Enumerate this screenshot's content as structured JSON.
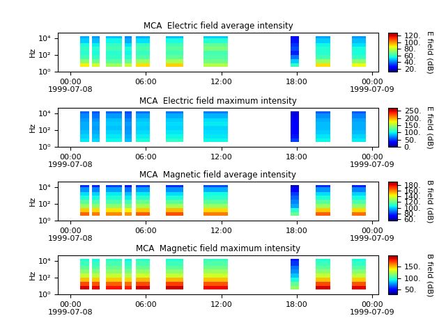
{
  "chart_data": [
    {
      "type": "heatmap",
      "title": "MCA  Electric field average intensity",
      "y_label": "Hz",
      "colorbar_label": "E field (dB)",
      "log": "y",
      "xlim": [
        -1,
        24.5
      ],
      "xticks": [
        {
          "value": 0,
          "label": "00:00\n1999-07-08"
        },
        {
          "value": 6,
          "label": "06:00"
        },
        {
          "value": 12,
          "label": "12:00"
        },
        {
          "value": 18,
          "label": "18:00"
        },
        {
          "value": 24,
          "label": "00:00\n1999-07-09"
        }
      ],
      "ylim": [
        1,
        50000
      ],
      "yticks": [
        {
          "value": 1,
          "label": "10⁰"
        },
        {
          "value": 100,
          "label": "10²"
        },
        {
          "value": 10000,
          "label": "10⁴"
        }
      ],
      "freq_edges": [
        4,
        10,
        30,
        100,
        300,
        1000,
        3000,
        10000,
        20000
      ],
      "color_range": [
        12,
        128
      ],
      "color_ticks": [
        {
          "value": 20,
          "label": "20."
        },
        {
          "value": 40,
          "label": "40."
        },
        {
          "value": 60,
          "label": "60."
        },
        {
          "value": 80,
          "label": "80."
        },
        {
          "value": 100,
          "label": "100."
        },
        {
          "value": 120,
          "label": "120."
        }
      ],
      "segments": [
        {
          "start": 0.8,
          "end": 1.5,
          "values": [
            88,
            72,
            62,
            58,
            60,
            56,
            50,
            46
          ]
        },
        {
          "start": 1.7,
          "end": 2.3,
          "values": [
            82,
            68,
            60,
            56,
            58,
            54,
            48,
            44
          ]
        },
        {
          "start": 2.8,
          "end": 4.1,
          "values": [
            75,
            65,
            60,
            58,
            62,
            60,
            55,
            48
          ]
        },
        {
          "start": 4.3,
          "end": 4.9,
          "values": [
            80,
            66,
            58,
            55,
            57,
            52,
            46,
            42
          ]
        },
        {
          "start": 5.2,
          "end": 6.3,
          "values": [
            90,
            74,
            64,
            60,
            63,
            60,
            52,
            46
          ]
        },
        {
          "start": 7.6,
          "end": 9.0,
          "values": [
            92,
            76,
            66,
            62,
            65,
            62,
            56,
            48
          ]
        },
        {
          "start": 10.6,
          "end": 12.5,
          "values": [
            78,
            68,
            64,
            62,
            70,
            66,
            58,
            50
          ]
        },
        {
          "start": 17.5,
          "end": 18.2,
          "values": [
            60,
            50,
            40,
            30,
            35,
            32,
            28,
            25
          ]
        },
        {
          "start": 19.5,
          "end": 20.7,
          "values": [
            90,
            74,
            62,
            58,
            58,
            55,
            50,
            45
          ]
        },
        {
          "start": 22.4,
          "end": 23.5,
          "values": [
            86,
            72,
            60,
            56,
            56,
            52,
            48,
            44
          ]
        }
      ]
    },
    {
      "type": "heatmap",
      "title": "MCA  Electric field maximum intensity",
      "y_label": "Hz",
      "colorbar_label": "E field (dB)",
      "log": "y",
      "xlim": [
        -1,
        24.5
      ],
      "xticks": [
        {
          "value": 0,
          "label": "00:00\n1999-07-08"
        },
        {
          "value": 6,
          "label": "06:00"
        },
        {
          "value": 12,
          "label": "12:00"
        },
        {
          "value": 18,
          "label": "18:00"
        },
        {
          "value": 24,
          "label": "00:00\n1999-07-09"
        }
      ],
      "ylim": [
        1,
        50000
      ],
      "yticks": [
        {
          "value": 1,
          "label": "10⁰"
        },
        {
          "value": 100,
          "label": "10²"
        },
        {
          "value": 10000,
          "label": "10⁴"
        }
      ],
      "freq_edges": [
        4,
        10,
        30,
        100,
        300,
        1000,
        3000,
        10000,
        20000
      ],
      "color_range": [
        0,
        270
      ],
      "color_ticks": [
        {
          "value": 0,
          "label": "0."
        },
        {
          "value": 50,
          "label": "50."
        },
        {
          "value": 100,
          "label": "100."
        },
        {
          "value": 150,
          "label": "150."
        },
        {
          "value": 200,
          "label": "200."
        },
        {
          "value": 250,
          "label": "250."
        }
      ],
      "segments": [
        {
          "start": 0.8,
          "end": 1.5,
          "values": [
            95,
            90,
            85,
            80,
            80,
            75,
            70,
            60
          ]
        },
        {
          "start": 1.7,
          "end": 2.3,
          "values": [
            90,
            85,
            80,
            75,
            78,
            72,
            65,
            55
          ]
        },
        {
          "start": 2.8,
          "end": 4.1,
          "values": [
            100,
            95,
            90,
            85,
            88,
            85,
            75,
            60
          ]
        },
        {
          "start": 4.3,
          "end": 4.9,
          "values": [
            85,
            80,
            75,
            72,
            75,
            70,
            62,
            52
          ]
        },
        {
          "start": 5.2,
          "end": 6.3,
          "values": [
            105,
            98,
            92,
            88,
            90,
            86,
            78,
            62
          ]
        },
        {
          "start": 7.6,
          "end": 9.0,
          "values": [
            110,
            100,
            95,
            90,
            92,
            88,
            80,
            65
          ]
        },
        {
          "start": 10.6,
          "end": 12.5,
          "values": [
            100,
            95,
            92,
            90,
            96,
            92,
            82,
            66
          ]
        },
        {
          "start": 17.5,
          "end": 18.2,
          "values": [
            50,
            40,
            35,
            30,
            30,
            28,
            25,
            20
          ]
        },
        {
          "start": 19.5,
          "end": 20.7,
          "values": [
            100,
            94,
            88,
            84,
            84,
            80,
            72,
            58
          ]
        },
        {
          "start": 22.4,
          "end": 23.5,
          "values": [
            96,
            90,
            84,
            80,
            80,
            76,
            68,
            56
          ]
        }
      ]
    },
    {
      "type": "heatmap",
      "title": "MCA  Magnetic field average intensity",
      "y_label": "Hz",
      "colorbar_label": "B field (dB)",
      "log": "y",
      "xlim": [
        -1,
        24.5
      ],
      "xticks": [
        {
          "value": 0,
          "label": "00:00\n1999-07-08"
        },
        {
          "value": 6,
          "label": "06:00"
        },
        {
          "value": 12,
          "label": "12:00"
        },
        {
          "value": 18,
          "label": "18:00"
        },
        {
          "value": 24,
          "label": "00:00\n1999-07-09"
        }
      ],
      "ylim": [
        1,
        50000
      ],
      "yticks": [
        {
          "value": 1,
          "label": "10⁰"
        },
        {
          "value": 100,
          "label": "10²"
        },
        {
          "value": 10000,
          "label": "10⁴"
        }
      ],
      "freq_edges": [
        4,
        10,
        30,
        100,
        300,
        1000,
        3000,
        10000,
        20000
      ],
      "color_range": [
        55,
        192
      ],
      "color_ticks": [
        {
          "value": 60,
          "label": "60."
        },
        {
          "value": 80,
          "label": "80."
        },
        {
          "value": 100,
          "label": "100."
        },
        {
          "value": 120,
          "label": "120."
        },
        {
          "value": 140,
          "label": "140."
        },
        {
          "value": 160,
          "label": "160."
        },
        {
          "value": 180,
          "label": "180."
        }
      ],
      "segments": [
        {
          "start": 0.8,
          "end": 1.5,
          "values": [
            165,
            150,
            128,
            118,
            108,
            102,
            92,
            78
          ]
        },
        {
          "start": 1.7,
          "end": 2.3,
          "values": [
            162,
            148,
            126,
            116,
            106,
            100,
            90,
            76
          ]
        },
        {
          "start": 2.8,
          "end": 4.1,
          "values": [
            160,
            146,
            126,
            116,
            108,
            104,
            94,
            80
          ]
        },
        {
          "start": 4.3,
          "end": 4.9,
          "values": [
            158,
            144,
            124,
            114,
            104,
            98,
            88,
            74
          ]
        },
        {
          "start": 5.2,
          "end": 6.3,
          "values": [
            166,
            150,
            130,
            120,
            110,
            104,
            94,
            80
          ]
        },
        {
          "start": 7.6,
          "end": 9.0,
          "values": [
            168,
            152,
            130,
            118,
            108,
            102,
            92,
            78
          ]
        },
        {
          "start": 10.6,
          "end": 12.5,
          "values": [
            162,
            148,
            128,
            118,
            110,
            106,
            96,
            82
          ]
        },
        {
          "start": 17.5,
          "end": 18.2,
          "values": [
            120,
            110,
            95,
            90,
            85,
            80,
            72,
            62
          ]
        },
        {
          "start": 19.5,
          "end": 20.7,
          "values": [
            166,
            150,
            128,
            118,
            108,
            102,
            92,
            78
          ]
        },
        {
          "start": 22.4,
          "end": 23.5,
          "values": [
            164,
            148,
            126,
            116,
            106,
            100,
            90,
            76
          ]
        }
      ]
    },
    {
      "type": "heatmap",
      "title": "MCA  Magnetic field maximum intensity",
      "y_label": "Hz",
      "colorbar_label": "B field (dB)",
      "log": "y",
      "xlim": [
        -1,
        24.5
      ],
      "xticks": [
        {
          "value": 0,
          "label": "00:00\n1999-07-08"
        },
        {
          "value": 6,
          "label": "06:00"
        },
        {
          "value": 12,
          "label": "12:00"
        },
        {
          "value": 18,
          "label": "18:00"
        },
        {
          "value": 24,
          "label": "00:00\n1999-07-09"
        }
      ],
      "ylim": [
        1,
        50000
      ],
      "yticks": [
        {
          "value": 1,
          "label": "10⁰"
        },
        {
          "value": 100,
          "label": "10²"
        },
        {
          "value": 10000,
          "label": "10⁴"
        }
      ],
      "freq_edges": [
        4,
        10,
        30,
        100,
        300,
        1000,
        3000,
        10000,
        20000
      ],
      "color_range": [
        30,
        200
      ],
      "color_ticks": [
        {
          "value": 50,
          "label": "50."
        },
        {
          "value": 100,
          "label": "100."
        },
        {
          "value": 150,
          "label": "150."
        }
      ],
      "segments": [
        {
          "start": 0.8,
          "end": 1.5,
          "values": [
            188,
            172,
            150,
            130,
            118,
            108,
            102,
            96
          ]
        },
        {
          "start": 1.7,
          "end": 2.3,
          "values": [
            185,
            170,
            148,
            128,
            116,
            106,
            100,
            94
          ]
        },
        {
          "start": 2.8,
          "end": 4.1,
          "values": [
            182,
            168,
            148,
            130,
            118,
            110,
            104,
            98
          ]
        },
        {
          "start": 4.3,
          "end": 4.9,
          "values": [
            180,
            166,
            146,
            126,
            114,
            104,
            98,
            92
          ]
        },
        {
          "start": 5.2,
          "end": 6.3,
          "values": [
            188,
            172,
            152,
            132,
            120,
            110,
            104,
            98
          ]
        },
        {
          "start": 7.6,
          "end": 9.0,
          "values": [
            190,
            174,
            152,
            130,
            118,
            108,
            102,
            96
          ]
        },
        {
          "start": 10.6,
          "end": 12.5,
          "values": [
            184,
            170,
            150,
            132,
            122,
            112,
            106,
            100
          ]
        },
        {
          "start": 17.5,
          "end": 18.2,
          "values": [
            120,
            110,
            95,
            85,
            75,
            70,
            60,
            55
          ]
        },
        {
          "start": 19.5,
          "end": 20.7,
          "values": [
            188,
            172,
            150,
            130,
            118,
            108,
            102,
            96
          ]
        },
        {
          "start": 22.4,
          "end": 23.5,
          "values": [
            186,
            170,
            148,
            128,
            116,
            106,
            100,
            94
          ]
        }
      ]
    }
  ]
}
